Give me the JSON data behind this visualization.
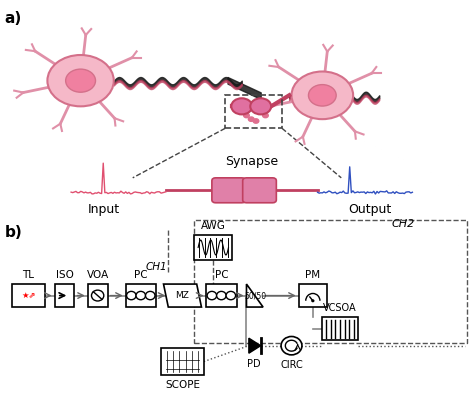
{
  "fig_width": 4.74,
  "fig_height": 4.0,
  "dpi": 100,
  "bg_color": "#ffffff",
  "panel_a_label": "a)",
  "panel_b_label": "b)",
  "neuron_body_color": "#f5b8c8",
  "neuron_outline_color": "#d4708a",
  "axon_color": "#c0305a",
  "synapse_color": "#d4708a",
  "input_label": "Input",
  "output_label": "Output",
  "synapse_label": "Synapse",
  "signal_input_color": "#e05070",
  "signal_output_color": "#3050c0",
  "components": [
    "TL",
    "ISO",
    "VOA",
    "PC",
    "MZ",
    "PC",
    "50/50",
    "PM",
    "SCOPE",
    "PD",
    "CIRC",
    "VCSOA",
    "AWG"
  ],
  "ch1_label": "CH1",
  "ch2_label": "CH2",
  "box_color": "#000000",
  "dashed_box_color": "#555555",
  "arrow_color": "#888888"
}
